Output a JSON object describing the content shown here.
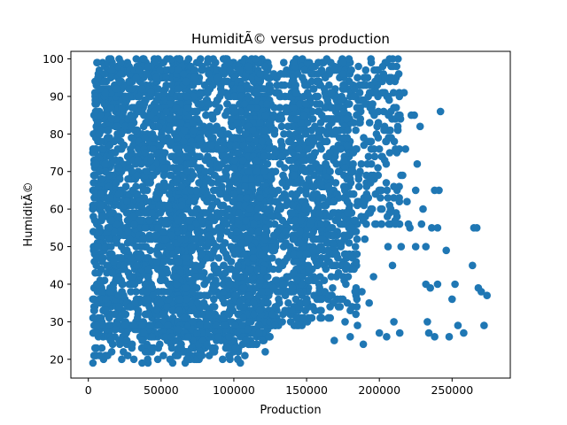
{
  "chart_data": {
    "type": "scatter",
    "title": "HumiditÃ© versus production",
    "xlabel": "Production",
    "ylabel": "HumiditÃ©",
    "xlim": [
      -12000,
      290000
    ],
    "ylim": [
      15,
      102
    ],
    "x_ticks": [
      {
        "value": 0,
        "label": "0"
      },
      {
        "value": 50000,
        "label": "50000"
      },
      {
        "value": 100000,
        "label": "100000"
      },
      {
        "value": 150000,
        "label": "150000"
      },
      {
        "value": 200000,
        "label": "200000"
      },
      {
        "value": 250000,
        "label": "250000"
      }
    ],
    "y_ticks": [
      {
        "value": 20,
        "label": "20"
      },
      {
        "value": 30,
        "label": "30"
      },
      {
        "value": 40,
        "label": "40"
      },
      {
        "value": 50,
        "label": "50"
      },
      {
        "value": 60,
        "label": "60"
      },
      {
        "value": 70,
        "label": "70"
      },
      {
        "value": 80,
        "label": "80"
      },
      {
        "value": 90,
        "label": "90"
      },
      {
        "value": 100,
        "label": "100"
      }
    ],
    "grid": false,
    "marker_color": "#1f77b4",
    "series": [
      {
        "points": [
          [
            274000,
            37
          ],
          [
            272000,
            29
          ],
          [
            270000,
            38
          ],
          [
            268000,
            39
          ],
          [
            267000,
            55
          ],
          [
            265000,
            55
          ],
          [
            264000,
            45
          ],
          [
            258000,
            27
          ],
          [
            254000,
            29
          ],
          [
            252000,
            40
          ],
          [
            250000,
            36
          ],
          [
            248000,
            26
          ],
          [
            246000,
            49
          ],
          [
            242000,
            86
          ],
          [
            241000,
            65
          ],
          [
            240000,
            55
          ],
          [
            240000,
            40
          ],
          [
            238000,
            65
          ],
          [
            238000,
            26
          ],
          [
            236000,
            55
          ],
          [
            235000,
            39
          ],
          [
            234000,
            27
          ],
          [
            233000,
            30
          ],
          [
            232000,
            50
          ],
          [
            232000,
            40
          ],
          [
            230000,
            60
          ],
          [
            229000,
            56
          ],
          [
            228000,
            82
          ],
          [
            226000,
            72
          ],
          [
            225000,
            65
          ],
          [
            225000,
            50
          ],
          [
            224000,
            85
          ],
          [
            222000,
            85
          ],
          [
            221000,
            55
          ],
          [
            220000,
            56
          ],
          [
            219000,
            62
          ],
          [
            218000,
            76
          ],
          [
            217000,
            91
          ],
          [
            216000,
            69
          ],
          [
            215000,
            50
          ],
          [
            214000,
            27
          ],
          [
            212000,
            75
          ],
          [
            211000,
            56
          ],
          [
            210000,
            66
          ],
          [
            210000,
            30
          ],
          [
            209000,
            45
          ],
          [
            208000,
            86
          ],
          [
            207000,
            61
          ],
          [
            206000,
            50
          ],
          [
            205000,
            26
          ],
          [
            204000,
            95
          ],
          [
            203000,
            86
          ],
          [
            202000,
            74
          ],
          [
            201000,
            60
          ],
          [
            200000,
            27
          ],
          [
            199000,
            95
          ],
          [
            198000,
            80
          ],
          [
            197000,
            56
          ],
          [
            196000,
            42
          ],
          [
            195000,
            86
          ],
          [
            194000,
            67
          ],
          [
            193000,
            35
          ],
          [
            192000,
            78
          ],
          [
            191000,
            93
          ],
          [
            190000,
            52
          ],
          [
            189000,
            24
          ],
          [
            188000,
            38
          ],
          [
            187000,
            84
          ],
          [
            186000,
            66
          ],
          [
            185000,
            29
          ],
          [
            184000,
            46
          ],
          [
            183000,
            92
          ],
          [
            182000,
            72
          ],
          [
            181000,
            55
          ],
          [
            180000,
            26
          ],
          [
            179000,
            88
          ],
          [
            178000,
            62
          ],
          [
            177000,
            40
          ],
          [
            176000,
            79
          ],
          [
            175000,
            96
          ],
          [
            174000,
            51
          ],
          [
            173000,
            34
          ],
          [
            172000,
            70
          ],
          [
            171000,
            84
          ],
          [
            170000,
            45
          ],
          [
            169000,
            25
          ],
          [
            168000,
            59
          ],
          [
            167000,
            91
          ],
          [
            166000,
            37
          ],
          [
            165000,
            66
          ],
          [
            164000,
            78
          ]
        ],
        "dense_regions": [
          {
            "x": [
              3000,
              70000
            ],
            "y": [
              26,
              100
            ],
            "count": 1700
          },
          {
            "x": [
              60000,
              125000
            ],
            "y": [
              22,
              100
            ],
            "count": 1300
          },
          {
            "x": [
              100000,
              150000
            ],
            "y": [
              28,
              100
            ],
            "count": 700
          },
          {
            "x": [
              140000,
              180000
            ],
            "y": [
              45,
              100
            ],
            "count": 450
          },
          {
            "x": [
              140000,
              185000
            ],
            "y": [
              30,
              60
            ],
            "count": 180
          },
          {
            "x": [
              175000,
              215000
            ],
            "y": [
              55,
              100
            ],
            "count": 220
          },
          {
            "x": [
              3000,
              110000
            ],
            "y": [
              19,
              30
            ],
            "count": 160
          }
        ]
      }
    ]
  }
}
